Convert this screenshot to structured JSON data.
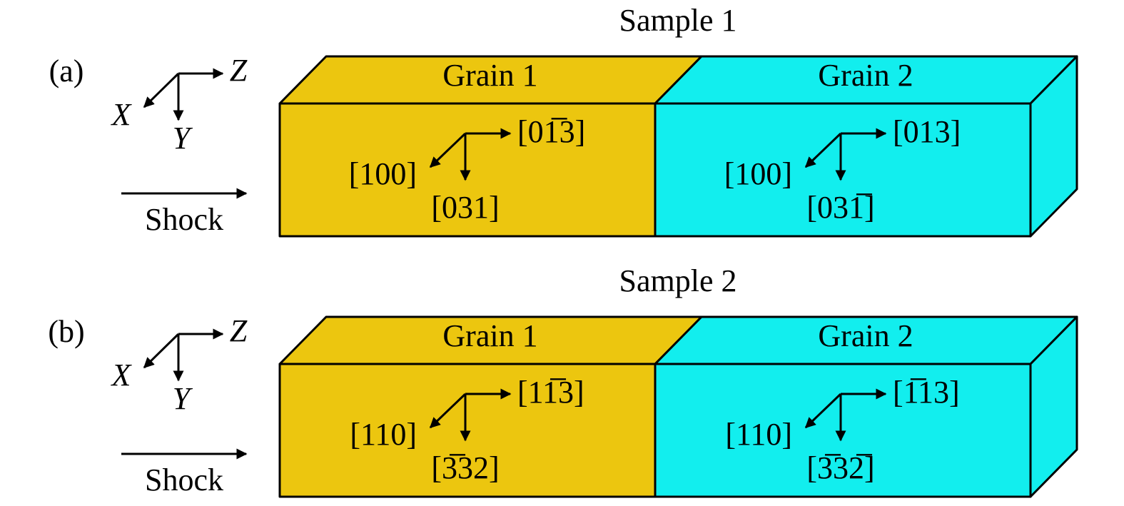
{
  "panels": [
    {
      "label": "(a)",
      "title": "Sample 1",
      "axes": {
        "x": "X",
        "y": "Y",
        "z": "Z"
      },
      "shock": "Shock",
      "grains": [
        {
          "name": "Grain 1",
          "directions": {
            "x": "[100]",
            "y": "[031]",
            "z": "[01̅3]"
          }
        },
        {
          "name": "Grain 2",
          "directions": {
            "x": "[100]",
            "y": "[031̅]",
            "z": "[013]"
          }
        }
      ]
    },
    {
      "label": "(b)",
      "title": "Sample 2",
      "axes": {
        "x": "X",
        "y": "Y",
        "z": "Z"
      },
      "shock": "Shock",
      "grains": [
        {
          "name": "Grain 1",
          "directions": {
            "x": "[110]",
            "y": "[3̅32]",
            "z": "[11̅3]"
          }
        },
        {
          "name": "Grain 2",
          "directions": {
            "x": "[110]",
            "y": "[3̅32̅]",
            "z": "[1̅13]"
          }
        }
      ]
    }
  ]
}
